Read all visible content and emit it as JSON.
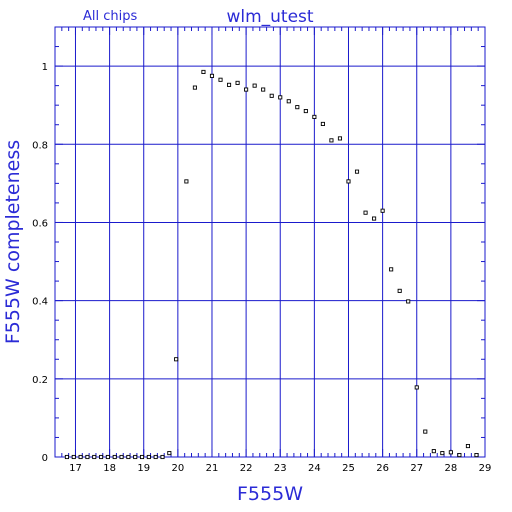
{
  "chart_data": {
    "type": "scatter",
    "title": "wlm_utest",
    "subtitle": "All chips",
    "xlabel": "F555W",
    "ylabel": "F555W completeness",
    "xlim": [
      16.4,
      29.0
    ],
    "ylim": [
      0,
      1.1
    ],
    "grid": true,
    "x_ticks": [
      17,
      18,
      19,
      20,
      21,
      22,
      23,
      24,
      25,
      26,
      27,
      28,
      29
    ],
    "y_ticks": [
      0,
      0.2,
      0.4,
      0.6,
      0.8,
      1
    ],
    "y_tick_labels": [
      "0",
      "0.2",
      "0.4",
      "0.6",
      "0.8",
      "1"
    ],
    "marker": "open-square",
    "colors": {
      "frame": "#1a1acc",
      "text": "#2b2bd6",
      "points": "#000000"
    },
    "x": [
      16.75,
      16.95,
      17.15,
      17.35,
      17.55,
      17.75,
      17.95,
      18.15,
      18.35,
      18.55,
      18.75,
      18.95,
      19.15,
      19.35,
      19.55,
      19.75,
      19.95,
      20.25,
      20.5,
      20.75,
      21.0,
      21.25,
      21.5,
      21.75,
      22.0,
      22.25,
      22.5,
      22.75,
      23.0,
      23.25,
      23.5,
      23.75,
      24.0,
      24.25,
      24.5,
      24.75,
      25.0,
      25.25,
      25.5,
      25.75,
      26.0,
      26.25,
      26.5,
      26.75,
      27.0,
      27.25,
      27.5,
      27.75,
      28.0,
      28.25,
      28.5,
      28.75
    ],
    "y": [
      0,
      0,
      0,
      0,
      0,
      0,
      0,
      0,
      0,
      0,
      0,
      0,
      0,
      0,
      0,
      0.01,
      0.25,
      0.705,
      0.945,
      0.985,
      0.975,
      0.965,
      0.952,
      0.957,
      0.94,
      0.95,
      0.94,
      0.924,
      0.92,
      0.91,
      0.895,
      0.885,
      0.87,
      0.852,
      0.81,
      0.815,
      0.705,
      0.73,
      0.625,
      0.61,
      0.63,
      0.48,
      0.425,
      0.398,
      0.178,
      0.065,
      0.015,
      0.01,
      0.012,
      0.005,
      0.028,
      0.005
    ]
  }
}
